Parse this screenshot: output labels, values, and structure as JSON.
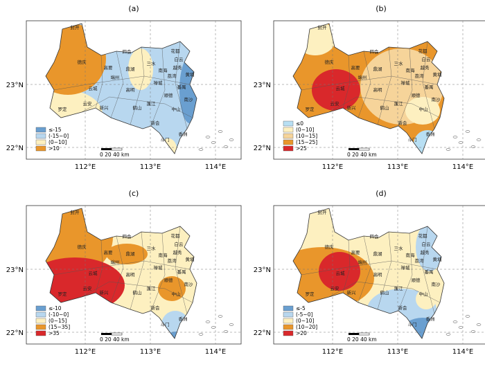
{
  "panels": [
    {
      "label": "(a)",
      "legend": [
        {
          "label": "≤-15",
          "color": "#6a9fd0"
        },
        {
          "label": "(-15~0]",
          "color": "#b8d7ef"
        },
        {
          "label": "(0~10]",
          "color": "#fdf0c0"
        },
        {
          "label": ">10",
          "color": "#e9962b"
        }
      ]
    },
    {
      "label": "(b)",
      "legend": [
        {
          "label": "≤0",
          "color": "#b8dff3"
        },
        {
          "label": "(0~10]",
          "color": "#fdf0c0"
        },
        {
          "label": "(10~15]",
          "color": "#f6d49a"
        },
        {
          "label": "(15~25]",
          "color": "#e9962b"
        },
        {
          "label": ">25",
          "color": "#d9282b"
        }
      ]
    },
    {
      "label": "(c)",
      "legend": [
        {
          "label": "≤-10",
          "color": "#6a9fd0"
        },
        {
          "label": "(-10~0]",
          "color": "#b8d7ef"
        },
        {
          "label": "(0~15]",
          "color": "#fdf0c0"
        },
        {
          "label": "(15~35]",
          "color": "#e9962b"
        },
        {
          "label": ">35",
          "color": "#d9282b"
        }
      ]
    },
    {
      "label": "(d)",
      "legend": [
        {
          "label": "≤-5",
          "color": "#6a9fd0"
        },
        {
          "label": "(-5~0]",
          "color": "#b8d7ef"
        },
        {
          "label": "(0~10]",
          "color": "#fdf0c0"
        },
        {
          "label": "(10~20]",
          "color": "#e9962b"
        },
        {
          "label": ">20",
          "color": "#d9282b"
        }
      ]
    }
  ],
  "axes": {
    "lon": [
      "112°E",
      "113°E",
      "114°E"
    ],
    "lat": [
      "23°N",
      "22°N"
    ]
  },
  "scale_bar": "0  20  40 km",
  "places": [
    "封开",
    "德庆",
    "四会",
    "花都",
    "白云",
    "高要",
    "鼎湖",
    "三水",
    "端州",
    "南海",
    "越秀",
    "荔湾",
    "黄埔",
    "番禺",
    "禅城",
    "顺德",
    "南沙",
    "云城",
    "云安",
    "新兴",
    "罗定",
    "高明",
    "鹤山",
    "蓬江",
    "中山",
    "新会",
    "斗门",
    "香洲"
  ]
}
